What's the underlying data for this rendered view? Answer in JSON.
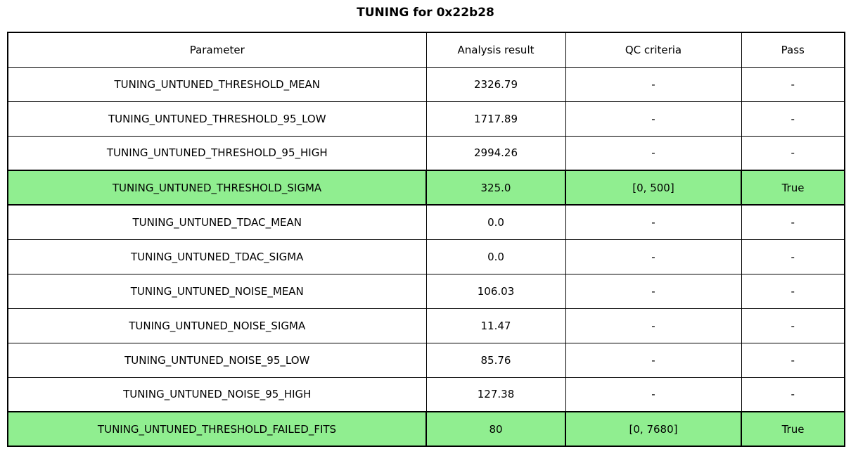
{
  "chart_data": {
    "type": "table",
    "title": "TUNING for 0x22b28",
    "columns": [
      "Parameter",
      "Analysis result",
      "QC criteria",
      "Pass"
    ],
    "rows": [
      {
        "parameter": "TUNING_UNTUNED_THRESHOLD_MEAN",
        "analysis_result": "2326.79",
        "qc_criteria": "-",
        "pass": "-",
        "highlight": false
      },
      {
        "parameter": "TUNING_UNTUNED_THRESHOLD_95_LOW",
        "analysis_result": "1717.89",
        "qc_criteria": "-",
        "pass": "-",
        "highlight": false
      },
      {
        "parameter": "TUNING_UNTUNED_THRESHOLD_95_HIGH",
        "analysis_result": "2994.26",
        "qc_criteria": "-",
        "pass": "-",
        "highlight": false
      },
      {
        "parameter": "TUNING_UNTUNED_THRESHOLD_SIGMA",
        "analysis_result": "325.0",
        "qc_criteria": "[0, 500]",
        "pass": "True",
        "highlight": true
      },
      {
        "parameter": "TUNING_UNTUNED_TDAC_MEAN",
        "analysis_result": "0.0",
        "qc_criteria": "-",
        "pass": "-",
        "highlight": false
      },
      {
        "parameter": "TUNING_UNTUNED_TDAC_SIGMA",
        "analysis_result": "0.0",
        "qc_criteria": "-",
        "pass": "-",
        "highlight": false
      },
      {
        "parameter": "TUNING_UNTUNED_NOISE_MEAN",
        "analysis_result": "106.03",
        "qc_criteria": "-",
        "pass": "-",
        "highlight": false
      },
      {
        "parameter": "TUNING_UNTUNED_NOISE_SIGMA",
        "analysis_result": "11.47",
        "qc_criteria": "-",
        "pass": "-",
        "highlight": false
      },
      {
        "parameter": "TUNING_UNTUNED_NOISE_95_LOW",
        "analysis_result": "85.76",
        "qc_criteria": "-",
        "pass": "-",
        "highlight": false
      },
      {
        "parameter": "TUNING_UNTUNED_NOISE_95_HIGH",
        "analysis_result": "127.38",
        "qc_criteria": "-",
        "pass": "-",
        "highlight": false
      },
      {
        "parameter": "TUNING_UNTUNED_THRESHOLD_FAILED_FITS",
        "analysis_result": "80",
        "qc_criteria": "[0, 7680]",
        "pass": "True",
        "highlight": true
      }
    ],
    "layout": {
      "legend": "none",
      "grid": "table-borders",
      "highlighted_rows": [
        3,
        10
      ]
    }
  },
  "colors": {
    "highlight": "#90ee90",
    "border": "#000000",
    "background": "#ffffff",
    "text": "#000000"
  }
}
